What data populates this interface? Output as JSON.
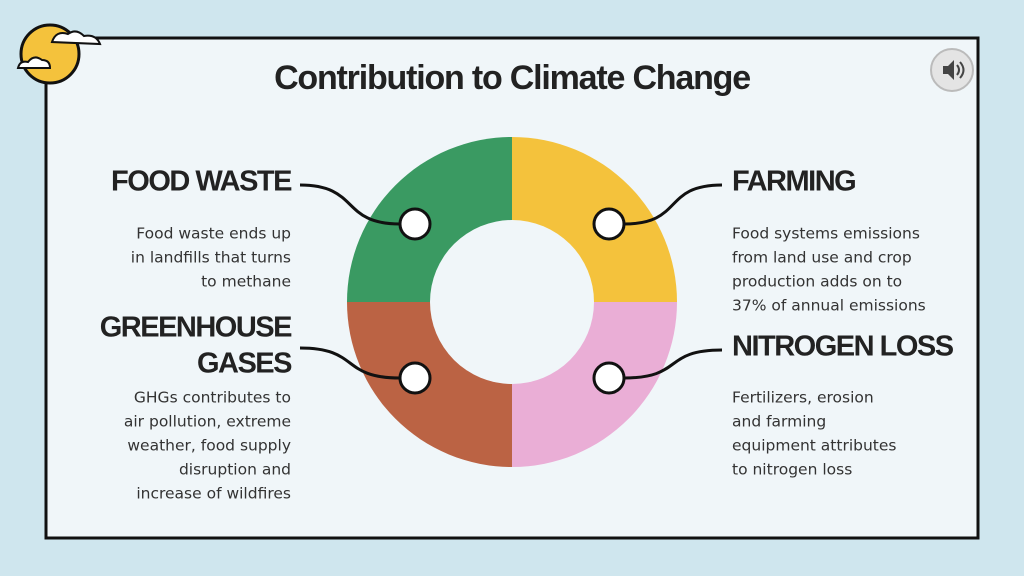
{
  "title": "Contribution to Climate Change",
  "sections": [
    {
      "heading": [
        "FOOD WASTE"
      ],
      "text": [
        "Food waste ends up",
        "in landfills that turns",
        "to methane"
      ]
    },
    {
      "heading": [
        "FARMING"
      ],
      "text": [
        "Food systems emissions",
        "from land use and crop",
        "production adds on to",
        "37% of annual emissions"
      ]
    },
    {
      "heading": [
        "GREENHOUSE",
        "GASES"
      ],
      "text": [
        "GHGs contributes to",
        "air pollution, extreme",
        "weather, food supply",
        "disruption and",
        "increase of wildfires"
      ]
    },
    {
      "heading": [
        "NITROGEN LOSS"
      ],
      "text": [
        "Fertilizers, erosion",
        "and farming",
        "equipment attributes",
        "to nitrogen loss"
      ]
    }
  ]
}
